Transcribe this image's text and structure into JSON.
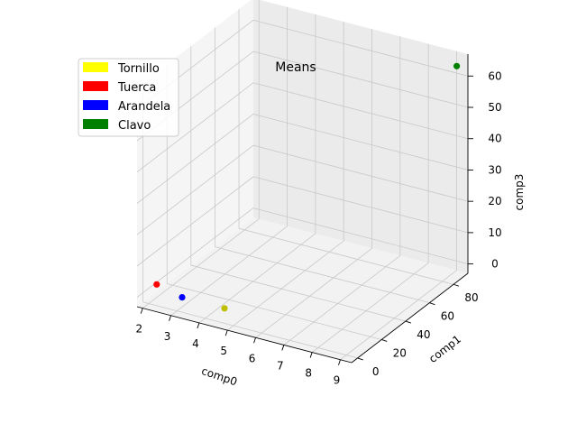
{
  "chart_data": {
    "type": "scatter",
    "projection": "3d",
    "title": "Means",
    "xlabel": "comp0",
    "ylabel": "comp1",
    "zlabel": "comp3",
    "x_ticks": [
      "2",
      "3",
      "4",
      "5",
      "6",
      "7",
      "8",
      "9"
    ],
    "y_ticks": [
      "0",
      "20",
      "40",
      "60",
      "80"
    ],
    "z_ticks": [
      "0",
      "10",
      "20",
      "30",
      "40",
      "50",
      "60"
    ],
    "xlim": [
      1.8,
      9.4
    ],
    "ylim": [
      -5,
      92
    ],
    "zlim": [
      -3,
      67
    ],
    "grid": true,
    "legend_position": "upper-left",
    "series": [
      {
        "name": "Tornillo",
        "color": "#ffff00",
        "marker_color": "#bfbf00",
        "x": 4.6,
        "y": 2,
        "z": 1
      },
      {
        "name": "Tuerca",
        "color": "#ff0000",
        "marker_color": "#ff0000",
        "x": 2.2,
        "y": 2,
        "z": 3
      },
      {
        "name": "Arandela",
        "color": "#0000ff",
        "marker_color": "#0000ff",
        "x": 3.1,
        "y": 2,
        "z": 1
      },
      {
        "name": "Clavo",
        "color": "#008000",
        "marker_color": "#008000",
        "x": 9.3,
        "y": 85,
        "z": 65
      }
    ]
  }
}
